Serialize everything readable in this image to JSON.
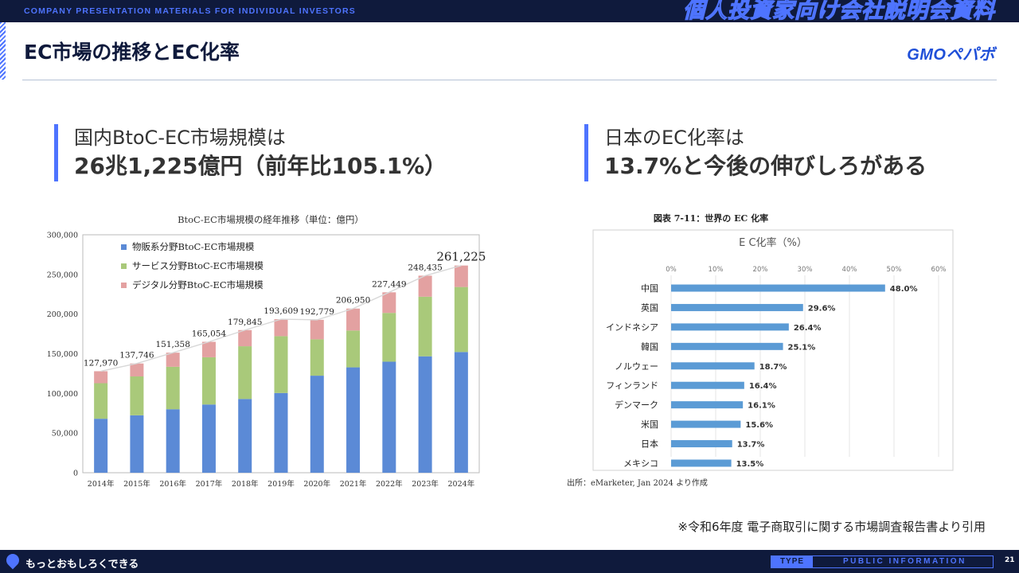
{
  "header": {
    "band_text": "COMPANY PRESENTATION MATERIALS FOR INDIVIDUAL INVESTORS",
    "band_right": "個人投資家向け会社説明会資料",
    "page_title": "EC市場の推移とEC化率",
    "logo": "GMOペパボ"
  },
  "left_headline": {
    "line1": "国内BtoC-EC市場規模は",
    "line2": "26兆1,225億円（前年比105.1%）"
  },
  "right_headline": {
    "line1": "日本のEC化率は",
    "line2": "13.7%と今後の伸びしろがある"
  },
  "note": "※令和6年度 電子商取引に関する市場調査報告書より引用",
  "footer": {
    "brand": "もっとおもしろくできる",
    "type_label": "TYPE",
    "type_value": "PUBLIC INFORMATION",
    "page_number": "21"
  },
  "colors": {
    "navy": "#0f1a3c",
    "accent": "#4e74ff",
    "goods": "#5b8ad6",
    "service": "#a9c97a",
    "digital": "#e3a1a1",
    "bar_h": "#5b9bd5"
  },
  "chart_data": [
    {
      "type": "bar",
      "stacked": true,
      "title": "BtoC-EC市場規模の経年推移（単位：億円）",
      "categories": [
        "2014年",
        "2015年",
        "2016年",
        "2017年",
        "2018年",
        "2019年",
        "2020年",
        "2021年",
        "2022年",
        "2023年",
        "2024年"
      ],
      "series": [
        {
          "name": "物販系分野BtoC-EC市場規模",
          "color": "#5b8ad6",
          "values": [
            68043,
            72398,
            80043,
            86008,
            92992,
            100515,
            122333,
            132865,
            139997,
            146760,
            152194
          ]
        },
        {
          "name": "サービス分野BtoC-EC市場規模",
          "color": "#a9c97a",
          "values": [
            44816,
            49014,
            53532,
            59568,
            66471,
            71672,
            45832,
            46424,
            61477,
            75169,
            81962
          ]
        },
        {
          "name": "デジタル分野BtoC-EC市場規模",
          "color": "#e3a1a1",
          "values": [
            15111,
            16334,
            17782,
            19478,
            20382,
            21422,
            24614,
            27661,
            25974,
            26506,
            27070
          ]
        }
      ],
      "totals": [
        "127,970",
        "137,746",
        "151,358",
        "165,054",
        "179,845",
        "193,609",
        "192,779",
        "206,950",
        "227,449",
        "248,435",
        "261,225"
      ],
      "yticks": [
        "0",
        "50,000",
        "100,000",
        "150,000",
        "200,000",
        "250,000",
        "300,000"
      ],
      "ylim": [
        0,
        300000
      ],
      "legend": "top-left"
    },
    {
      "type": "bar",
      "orientation": "horizontal",
      "figure_caption": "図表 7-11：世界の EC 化率",
      "title": "E C化率（%）",
      "categories": [
        "中国",
        "英国",
        "インドネシア",
        "韓国",
        "ノルウェー",
        "フィンランド",
        "デンマーク",
        "米国",
        "日本",
        "メキシコ"
      ],
      "values": [
        48.0,
        29.6,
        26.4,
        25.1,
        18.7,
        16.4,
        16.1,
        15.6,
        13.7,
        13.5
      ],
      "value_labels": [
        "48.0%",
        "29.6%",
        "26.4%",
        "25.1%",
        "18.7%",
        "16.4%",
        "16.1%",
        "15.6%",
        "13.7%",
        "13.5%"
      ],
      "xticks": [
        "0%",
        "10%",
        "20%",
        "30%",
        "40%",
        "50%",
        "60%"
      ],
      "xlim": [
        0,
        60
      ],
      "source": "出所：eMarketer, Jan 2024 より作成"
    }
  ]
}
